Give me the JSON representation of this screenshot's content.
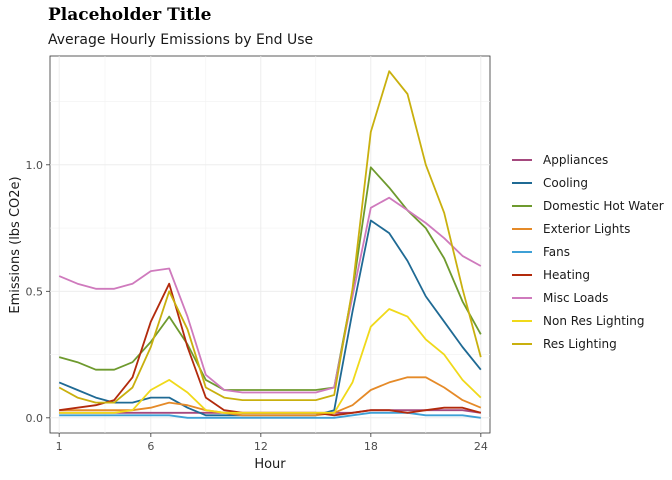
{
  "title": "Placeholder Title",
  "subtitle": "Average Hourly Emissions by End Use",
  "chart_data": {
    "type": "line",
    "xlabel": "Hour",
    "ylabel": "Emissions (lbs CO2e)",
    "xlim": [
      0.5,
      24.5
    ],
    "ylim": [
      -0.06,
      1.43
    ],
    "xticks": [
      1,
      6,
      12,
      18,
      24
    ],
    "yticks": [
      0.0,
      0.5,
      1.0
    ],
    "ytick_labels": [
      "0.0",
      "0.5",
      "1.0"
    ],
    "grid": true,
    "legend_position": "right",
    "x": [
      1,
      2,
      3,
      4,
      5,
      6,
      7,
      8,
      9,
      10,
      11,
      12,
      13,
      14,
      15,
      16,
      17,
      18,
      19,
      20,
      21,
      22,
      23,
      24
    ],
    "series": [
      {
        "name": "Appliances",
        "color": "#a5497e",
        "values": [
          0.02,
          0.02,
          0.02,
          0.02,
          0.02,
          0.02,
          0.02,
          0.02,
          0.02,
          0.02,
          0.02,
          0.02,
          0.02,
          0.02,
          0.02,
          0.02,
          0.02,
          0.03,
          0.03,
          0.03,
          0.03,
          0.03,
          0.03,
          0.02
        ]
      },
      {
        "name": "Cooling",
        "color": "#1f6a94",
        "values": [
          0.14,
          0.11,
          0.08,
          0.06,
          0.06,
          0.08,
          0.08,
          0.04,
          0.01,
          0.01,
          0.01,
          0.01,
          0.01,
          0.01,
          0.01,
          0.03,
          0.42,
          0.78,
          0.73,
          0.62,
          0.48,
          0.38,
          0.28,
          0.19
        ]
      },
      {
        "name": "Domestic Hot Water",
        "color": "#6e9a2e",
        "values": [
          0.24,
          0.22,
          0.19,
          0.19,
          0.22,
          0.3,
          0.4,
          0.29,
          0.15,
          0.11,
          0.11,
          0.11,
          0.11,
          0.11,
          0.11,
          0.12,
          0.5,
          0.99,
          0.91,
          0.82,
          0.75,
          0.63,
          0.46,
          0.33
        ]
      },
      {
        "name": "Exterior Lights",
        "color": "#e58a28",
        "values": [
          0.03,
          0.03,
          0.03,
          0.03,
          0.03,
          0.04,
          0.06,
          0.05,
          0.03,
          0.02,
          0.01,
          0.01,
          0.01,
          0.01,
          0.01,
          0.02,
          0.05,
          0.11,
          0.14,
          0.16,
          0.16,
          0.12,
          0.07,
          0.04
        ]
      },
      {
        "name": "Fans",
        "color": "#3ea0d6",
        "values": [
          0.01,
          0.01,
          0.01,
          0.01,
          0.01,
          0.01,
          0.01,
          0.0,
          0.0,
          0.0,
          0.0,
          0.0,
          0.0,
          0.0,
          0.0,
          0.0,
          0.01,
          0.02,
          0.02,
          0.02,
          0.01,
          0.01,
          0.01,
          0.0
        ]
      },
      {
        "name": "Heating",
        "color": "#b22a0c",
        "values": [
          0.03,
          0.04,
          0.05,
          0.07,
          0.16,
          0.38,
          0.53,
          0.28,
          0.08,
          0.03,
          0.02,
          0.02,
          0.02,
          0.02,
          0.02,
          0.01,
          0.02,
          0.03,
          0.03,
          0.02,
          0.03,
          0.04,
          0.04,
          0.02
        ]
      },
      {
        "name": "Misc Loads",
        "color": "#cf7abd",
        "values": [
          0.56,
          0.53,
          0.51,
          0.51,
          0.53,
          0.58,
          0.59,
          0.4,
          0.17,
          0.11,
          0.1,
          0.1,
          0.1,
          0.1,
          0.1,
          0.12,
          0.48,
          0.83,
          0.87,
          0.82,
          0.77,
          0.71,
          0.64,
          0.6
        ]
      },
      {
        "name": "Non Res Lighting",
        "color": "#f0d91a",
        "values": [
          0.02,
          0.02,
          0.02,
          0.02,
          0.03,
          0.11,
          0.15,
          0.1,
          0.03,
          0.02,
          0.02,
          0.02,
          0.02,
          0.02,
          0.02,
          0.02,
          0.14,
          0.36,
          0.43,
          0.4,
          0.31,
          0.25,
          0.15,
          0.08
        ]
      },
      {
        "name": "Res Lighting",
        "color": "#c9b00e",
        "values": [
          0.12,
          0.08,
          0.06,
          0.06,
          0.12,
          0.28,
          0.5,
          0.35,
          0.12,
          0.08,
          0.07,
          0.07,
          0.07,
          0.07,
          0.07,
          0.09,
          0.51,
          1.13,
          1.37,
          1.28,
          1.0,
          0.81,
          0.51,
          0.24
        ]
      }
    ]
  }
}
